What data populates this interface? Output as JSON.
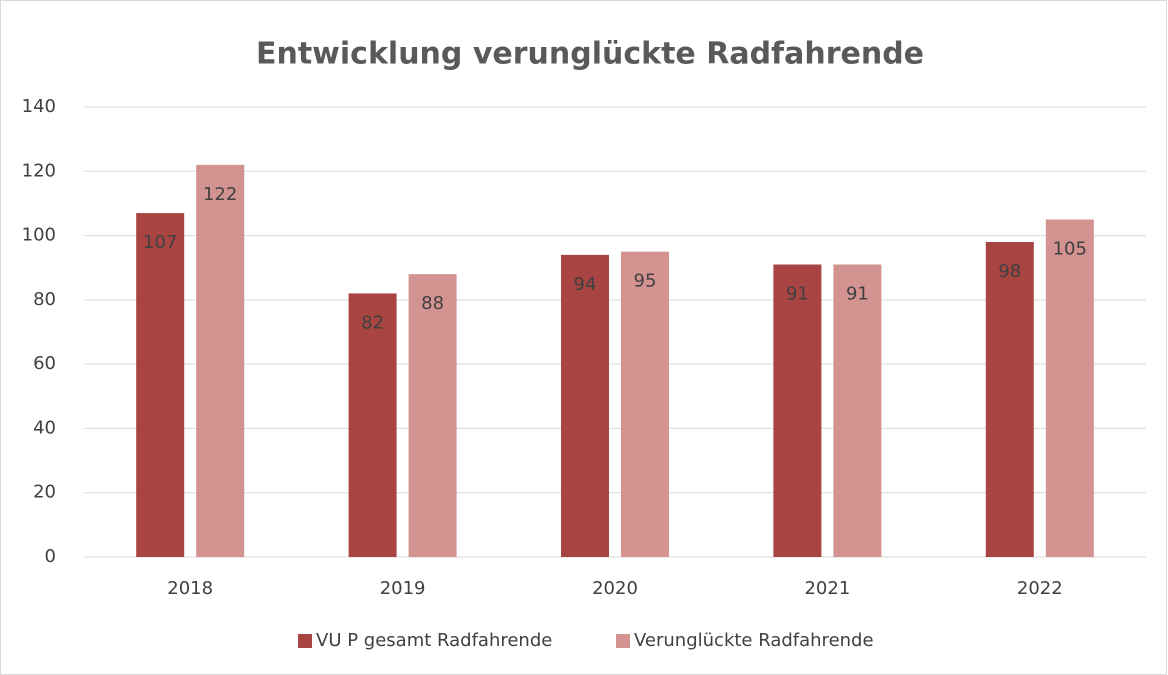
{
  "chart_data": {
    "type": "bar",
    "title": "Entwicklung verunglückte Radfahrende",
    "categories": [
      "2018",
      "2019",
      "2020",
      "2021",
      "2022"
    ],
    "series": [
      {
        "name": "VU P gesamt Radfahrende",
        "color": "#a84442",
        "values": [
          107,
          82,
          94,
          91,
          98
        ]
      },
      {
        "name": "Verunglückte Radfahrende",
        "color": "#d39391",
        "values": [
          122,
          88,
          95,
          91,
          105
        ]
      }
    ],
    "ylim": [
      0,
      140
    ],
    "yticks": [
      0,
      20,
      40,
      60,
      80,
      100,
      120,
      140
    ],
    "grid": true,
    "legend": "bottom"
  }
}
